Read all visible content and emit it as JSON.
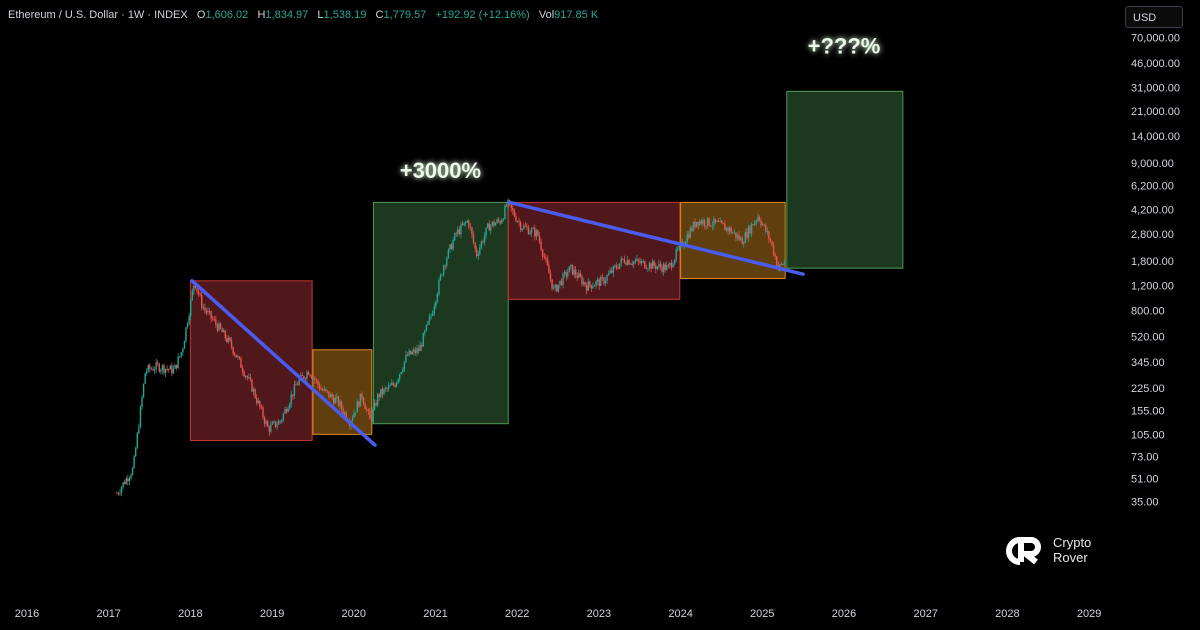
{
  "header": {
    "symbol": "Ethereum / U.S. Dollar · 1W · INDEX",
    "open_label": "O",
    "open": "1,606.02",
    "high_label": "H",
    "high": "1,834.97",
    "low_label": "L",
    "low": "1,538.19",
    "close_label": "C",
    "close": "1,779.57",
    "change": "+192.92 (+12.16%)",
    "vol_label": "Vol",
    "vol": "917.85 K"
  },
  "currency_button": "USD",
  "logo": {
    "line1": "Crypto",
    "line2": "Rover"
  },
  "colors": {
    "background": "#000000",
    "up_candle": "#26a69a",
    "down_candle": "#ef5350",
    "trendline": "#4a5cf0",
    "red_box": "#5a1b1e",
    "green_box": "#1f3f22",
    "orange_box": "#6b4510"
  },
  "chart_data": {
    "type": "candlestick",
    "scale": "log",
    "x_ticks": [
      "2016",
      "2017",
      "2018",
      "2019",
      "2020",
      "2021",
      "2022",
      "2023",
      "2024",
      "2025",
      "2026",
      "2027",
      "2028",
      "2029"
    ],
    "y_ticks": [
      "70,000.00",
      "46,000.00",
      "31,000.00",
      "21,000.00",
      "14,000.00",
      "9,000.00",
      "6,200.00",
      "4,200.00",
      "2,800.00",
      "1,800.00",
      "1,200.00",
      "800.00",
      "520.00",
      "345.00",
      "225.00",
      "155.00",
      "105.00",
      "73.00",
      "51.00",
      "35.00"
    ],
    "y_tick_values": [
      70000,
      46000,
      31000,
      21000,
      14000,
      9000,
      6200,
      4200,
      2800,
      1800,
      1200,
      800,
      520,
      345,
      225,
      155,
      105,
      73,
      51,
      35
    ],
    "price_path": [
      [
        2017.1,
        40
      ],
      [
        2017.3,
        60
      ],
      [
        2017.45,
        300
      ],
      [
        2017.6,
        320
      ],
      [
        2017.8,
        300
      ],
      [
        2017.9,
        420
      ],
      [
        2018.05,
        1300
      ],
      [
        2018.15,
        850
      ],
      [
        2018.35,
        600
      ],
      [
        2018.5,
        450
      ],
      [
        2018.75,
        230
      ],
      [
        2018.95,
        115
      ],
      [
        2019.1,
        130
      ],
      [
        2019.3,
        240
      ],
      [
        2019.45,
        300
      ],
      [
        2019.6,
        220
      ],
      [
        2019.8,
        180
      ],
      [
        2019.95,
        130
      ],
      [
        2020.1,
        200
      ],
      [
        2020.2,
        130
      ],
      [
        2020.3,
        200
      ],
      [
        2020.5,
        240
      ],
      [
        2020.65,
        380
      ],
      [
        2020.8,
        420
      ],
      [
        2020.95,
        750
      ],
      [
        2021.1,
        1700
      ],
      [
        2021.25,
        2800
      ],
      [
        2021.4,
        3500
      ],
      [
        2021.5,
        2000
      ],
      [
        2021.65,
        3200
      ],
      [
        2021.8,
        3500
      ],
      [
        2021.88,
        4600
      ],
      [
        2022.05,
        3200
      ],
      [
        2022.25,
        2800
      ],
      [
        2022.45,
        1100
      ],
      [
        2022.65,
        1600
      ],
      [
        2022.85,
        1200
      ],
      [
        2023.05,
        1300
      ],
      [
        2023.3,
        1850
      ],
      [
        2023.6,
        1700
      ],
      [
        2023.85,
        1600
      ],
      [
        2024.0,
        2300
      ],
      [
        2024.2,
        3500
      ],
      [
        2024.45,
        3300
      ],
      [
        2024.6,
        3000
      ],
      [
        2024.75,
        2500
      ],
      [
        2024.95,
        3800
      ],
      [
        2025.1,
        2500
      ],
      [
        2025.2,
        1600
      ],
      [
        2025.28,
        1780
      ]
    ],
    "boxes": [
      {
        "kind": "red",
        "x0": 2018.0,
        "x1": 2019.49,
        "y_top": 1300,
        "y_bottom": 95
      },
      {
        "kind": "orange",
        "x0": 2019.5,
        "x1": 2020.22,
        "y_top": 420,
        "y_bottom": 105
      },
      {
        "kind": "green",
        "x0": 2020.24,
        "x1": 2021.89,
        "y_top": 4700,
        "y_bottom": 125
      },
      {
        "kind": "red",
        "x0": 2021.89,
        "x1": 2023.99,
        "y_top": 4700,
        "y_bottom": 960
      },
      {
        "kind": "orange",
        "x0": 2024.0,
        "x1": 2025.28,
        "y_top": 4700,
        "y_bottom": 1350
      },
      {
        "kind": "green",
        "x0": 2025.3,
        "x1": 2026.72,
        "y_top": 29000,
        "y_bottom": 1600
      }
    ],
    "trendlines": [
      {
        "from": [
          2018.02,
          1300
        ],
        "to": [
          2020.26,
          88
        ]
      },
      {
        "from": [
          2021.91,
          4700
        ],
        "to": [
          2025.5,
          1450
        ]
      }
    ],
    "annotations": [
      {
        "text": "+3000%",
        "x": 2021.06,
        "y": 7000
      },
      {
        "text": "+???%",
        "x": 2026.0,
        "y": 54000
      }
    ]
  }
}
